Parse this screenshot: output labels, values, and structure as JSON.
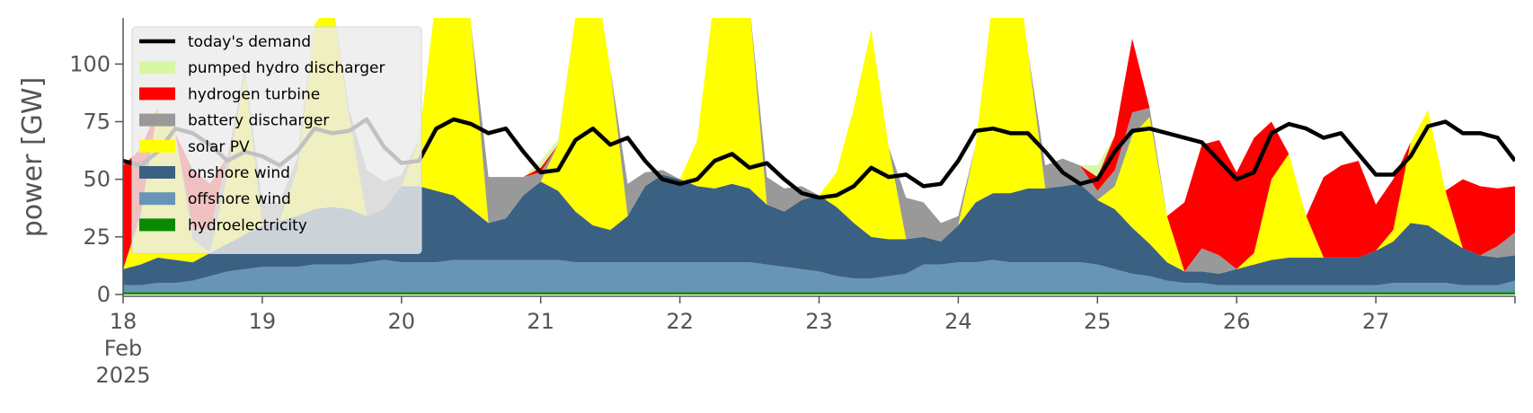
{
  "chart_data": {
    "type": "area",
    "title": "",
    "ylabel": "power [GW]",
    "xlabel": "",
    "ylim": [
      0,
      120
    ],
    "xlim": [
      "2025-02-18T00:00",
      "2025-02-28T00:00"
    ],
    "yticks": [
      0,
      25,
      50,
      75,
      100
    ],
    "xticks": [
      {
        "date": "2025-02-18",
        "label": "18",
        "sub": [
          "Feb",
          "2025"
        ]
      },
      {
        "date": "2025-02-19",
        "label": "19"
      },
      {
        "date": "2025-02-20",
        "label": "20"
      },
      {
        "date": "2025-02-21",
        "label": "21"
      },
      {
        "date": "2025-02-22",
        "label": "22"
      },
      {
        "date": "2025-02-23",
        "label": "23"
      },
      {
        "date": "2025-02-24",
        "label": "24"
      },
      {
        "date": "2025-02-25",
        "label": "25"
      },
      {
        "date": "2025-02-26",
        "label": "26"
      },
      {
        "date": "2025-02-27",
        "label": "27"
      }
    ],
    "grid": false,
    "legend_position": "top-left",
    "legend": [
      {
        "label": "today's demand",
        "kind": "line",
        "color": "#000000"
      },
      {
        "label": "pumped hydro discharger",
        "kind": "patch",
        "color": "#d9f7a0"
      },
      {
        "label": "hydrogen turbine",
        "kind": "patch",
        "color": "#ff0000"
      },
      {
        "label": "battery discharger",
        "kind": "patch",
        "color": "#999999"
      },
      {
        "label": "solar PV",
        "kind": "patch",
        "color": "#ffff00"
      },
      {
        "label": "onshore wind",
        "kind": "patch",
        "color": "#3b6182"
      },
      {
        "label": "offshore wind",
        "kind": "patch",
        "color": "#6895b5"
      },
      {
        "label": "hydroelectricity",
        "kind": "patch",
        "color": "#0b8a00"
      }
    ],
    "x": [
      "2025-02-18T00:00",
      "2025-02-18T03:00",
      "2025-02-18T06:00",
      "2025-02-18T09:00",
      "2025-02-18T12:00",
      "2025-02-18T15:00",
      "2025-02-18T18:00",
      "2025-02-18T21:00",
      "2025-02-19T00:00",
      "2025-02-19T03:00",
      "2025-02-19T06:00",
      "2025-02-19T09:00",
      "2025-02-19T12:00",
      "2025-02-19T15:00",
      "2025-02-19T18:00",
      "2025-02-19T21:00",
      "2025-02-20T00:00",
      "2025-02-20T03:00",
      "2025-02-20T06:00",
      "2025-02-20T09:00",
      "2025-02-20T12:00",
      "2025-02-20T15:00",
      "2025-02-20T18:00",
      "2025-02-20T21:00",
      "2025-02-21T00:00",
      "2025-02-21T03:00",
      "2025-02-21T06:00",
      "2025-02-21T09:00",
      "2025-02-21T12:00",
      "2025-02-21T15:00",
      "2025-02-21T18:00",
      "2025-02-21T21:00",
      "2025-02-22T00:00",
      "2025-02-22T03:00",
      "2025-02-22T06:00",
      "2025-02-22T09:00",
      "2025-02-22T12:00",
      "2025-02-22T15:00",
      "2025-02-22T18:00",
      "2025-02-22T21:00",
      "2025-02-23T00:00",
      "2025-02-23T03:00",
      "2025-02-23T06:00",
      "2025-02-23T09:00",
      "2025-02-23T12:00",
      "2025-02-23T15:00",
      "2025-02-23T18:00",
      "2025-02-23T21:00",
      "2025-02-24T00:00",
      "2025-02-24T03:00",
      "2025-02-24T06:00",
      "2025-02-24T09:00",
      "2025-02-24T12:00",
      "2025-02-24T15:00",
      "2025-02-24T18:00",
      "2025-02-24T21:00",
      "2025-02-25T00:00",
      "2025-02-25T03:00",
      "2025-02-25T06:00",
      "2025-02-25T09:00",
      "2025-02-25T12:00",
      "2025-02-25T15:00",
      "2025-02-25T18:00",
      "2025-02-25T21:00",
      "2025-02-26T00:00",
      "2025-02-26T03:00",
      "2025-02-26T06:00",
      "2025-02-26T09:00",
      "2025-02-26T12:00",
      "2025-02-26T15:00",
      "2025-02-26T18:00",
      "2025-02-26T21:00",
      "2025-02-27T00:00",
      "2025-02-27T03:00",
      "2025-02-27T06:00",
      "2025-02-27T09:00",
      "2025-02-27T12:00",
      "2025-02-27T15:00",
      "2025-02-27T18:00",
      "2025-02-27T21:00",
      "2025-02-28T00:00"
    ],
    "series": [
      {
        "name": "hydroelectricity",
        "color": "#0b8a00",
        "values": [
          1,
          1,
          1,
          1,
          1,
          1,
          1,
          1,
          1,
          1,
          1,
          1,
          1,
          1,
          1,
          1,
          1,
          1,
          1,
          1,
          1,
          1,
          1,
          1,
          1,
          1,
          1,
          1,
          1,
          1,
          1,
          1,
          1,
          1,
          1,
          1,
          1,
          1,
          1,
          1,
          1,
          1,
          1,
          1,
          1,
          1,
          1,
          1,
          1,
          1,
          1,
          1,
          1,
          1,
          1,
          1,
          1,
          1,
          1,
          1,
          1,
          1,
          1,
          1,
          1,
          1,
          1,
          1,
          1,
          1,
          1,
          1,
          1,
          1,
          1,
          1,
          1,
          1,
          1,
          1,
          1
        ]
      },
      {
        "name": "offshore wind",
        "color": "#6895b5",
        "values": [
          3,
          3,
          4,
          4,
          5,
          7,
          9,
          10,
          11,
          11,
          11,
          12,
          12,
          12,
          13,
          14,
          13,
          13,
          13,
          14,
          14,
          14,
          14,
          14,
          14,
          14,
          13,
          13,
          13,
          13,
          13,
          13,
          13,
          13,
          13,
          13,
          13,
          12,
          11,
          10,
          9,
          7,
          6,
          6,
          7,
          8,
          12,
          12,
          13,
          13,
          14,
          13,
          13,
          13,
          13,
          13,
          12,
          10,
          8,
          7,
          5,
          4,
          4,
          3,
          3,
          3,
          3,
          3,
          3,
          3,
          3,
          3,
          3,
          4,
          4,
          4,
          4,
          3,
          3,
          3,
          5
        ]
      },
      {
        "name": "onshore wind",
        "color": "#3b6182",
        "values": [
          7,
          9,
          11,
          10,
          8,
          10,
          12,
          15,
          18,
          20,
          22,
          24,
          25,
          24,
          20,
          22,
          33,
          33,
          31,
          28,
          22,
          16,
          18,
          28,
          34,
          30,
          22,
          16,
          14,
          20,
          33,
          38,
          36,
          33,
          32,
          34,
          32,
          26,
          24,
          30,
          33,
          30,
          24,
          18,
          16,
          15,
          12,
          10,
          16,
          26,
          29,
          30,
          32,
          32,
          33,
          34,
          28,
          26,
          20,
          14,
          8,
          5,
          5,
          5,
          7,
          9,
          11,
          12,
          12,
          12,
          12,
          12,
          15,
          18,
          26,
          25,
          20,
          16,
          13,
          12,
          11
        ]
      },
      {
        "name": "solar PV",
        "color": "#ffff00",
        "values": [
          0,
          20,
          65,
          55,
          10,
          0,
          30,
          70,
          0,
          0,
          20,
          80,
          90,
          40,
          0,
          0,
          0,
          20,
          85,
          130,
          80,
          0,
          0,
          0,
          0,
          20,
          85,
          115,
          70,
          0,
          0,
          0,
          0,
          20,
          85,
          125,
          80,
          0,
          0,
          0,
          0,
          15,
          50,
          90,
          40,
          0,
          0,
          0,
          0,
          25,
          85,
          120,
          60,
          0,
          0,
          0,
          0,
          10,
          40,
          55,
          20,
          0,
          0,
          0,
          0,
          5,
          35,
          45,
          18,
          0,
          0,
          0,
          0,
          5,
          35,
          50,
          20,
          0,
          0,
          0,
          0
        ]
      },
      {
        "name": "battery discharger",
        "color": "#999999",
        "values": [
          0,
          2,
          0,
          0,
          5,
          10,
          8,
          2,
          10,
          8,
          5,
          0,
          0,
          3,
          20,
          12,
          5,
          0,
          0,
          0,
          0,
          20,
          18,
          8,
          4,
          0,
          0,
          0,
          0,
          14,
          6,
          2,
          0,
          0,
          0,
          0,
          0,
          12,
          10,
          6,
          0,
          0,
          0,
          0,
          0,
          18,
          15,
          8,
          4,
          0,
          0,
          0,
          0,
          10,
          12,
          8,
          4,
          7,
          10,
          4,
          0,
          0,
          10,
          8,
          0,
          0,
          0,
          0,
          0,
          0,
          0,
          0,
          0,
          0,
          0,
          0,
          0,
          0,
          0,
          5,
          10
        ]
      },
      {
        "name": "hydrogen turbine",
        "color": "#ff0000",
        "values": [
          45,
          28,
          0,
          0,
          25,
          20,
          0,
          0,
          0,
          0,
          0,
          0,
          0,
          0,
          0,
          0,
          0,
          0,
          0,
          0,
          0,
          0,
          0,
          0,
          2,
          0,
          0,
          0,
          0,
          0,
          0,
          0,
          0,
          0,
          0,
          0,
          0,
          0,
          0,
          0,
          0,
          0,
          0,
          0,
          0,
          0,
          0,
          0,
          0,
          0,
          0,
          0,
          0,
          0,
          0,
          0,
          6,
          15,
          32,
          0,
          0,
          30,
          45,
          50,
          42,
          50,
          25,
          0,
          0,
          35,
          40,
          42,
          20,
          22,
          0,
          0,
          0,
          30,
          30,
          25,
          20
        ]
      },
      {
        "name": "pumped hydro discharger",
        "color": "#d9f7a0",
        "values": [
          0,
          0,
          0,
          0,
          0,
          0,
          0,
          0,
          0,
          0,
          0,
          0,
          0,
          0,
          0,
          0,
          0,
          0,
          0,
          0,
          0,
          0,
          0,
          0,
          3,
          2,
          0,
          0,
          0,
          0,
          0,
          0,
          0,
          0,
          0,
          0,
          0,
          0,
          0,
          0,
          0,
          0,
          0,
          0,
          0,
          0,
          0,
          0,
          0,
          0,
          0,
          0,
          0,
          0,
          0,
          0,
          5,
          0,
          0,
          0,
          0,
          0,
          0,
          0,
          0,
          0,
          0,
          0,
          0,
          0,
          0,
          0,
          0,
          0,
          0,
          0,
          0,
          0,
          0,
          0,
          0
        ]
      }
    ],
    "demand": {
      "name": "today's demand",
      "color": "#000000",
      "values": [
        58,
        56,
        62,
        72,
        70,
        65,
        58,
        62,
        60,
        56,
        62,
        72,
        70,
        71,
        76,
        64,
        57,
        58,
        72,
        76,
        74,
        70,
        72,
        62,
        53,
        54,
        67,
        72,
        65,
        68,
        58,
        50,
        48,
        50,
        58,
        61,
        55,
        57,
        50,
        44,
        42,
        43,
        47,
        55,
        51,
        52,
        47,
        48,
        58,
        71,
        72,
        70,
        70,
        62,
        53,
        48,
        50,
        62,
        71,
        72,
        70,
        68,
        66,
        58,
        50,
        53,
        70,
        74,
        72,
        68,
        70,
        61,
        52,
        52,
        60,
        73,
        75,
        70,
        70,
        68,
        58
      ]
    }
  }
}
